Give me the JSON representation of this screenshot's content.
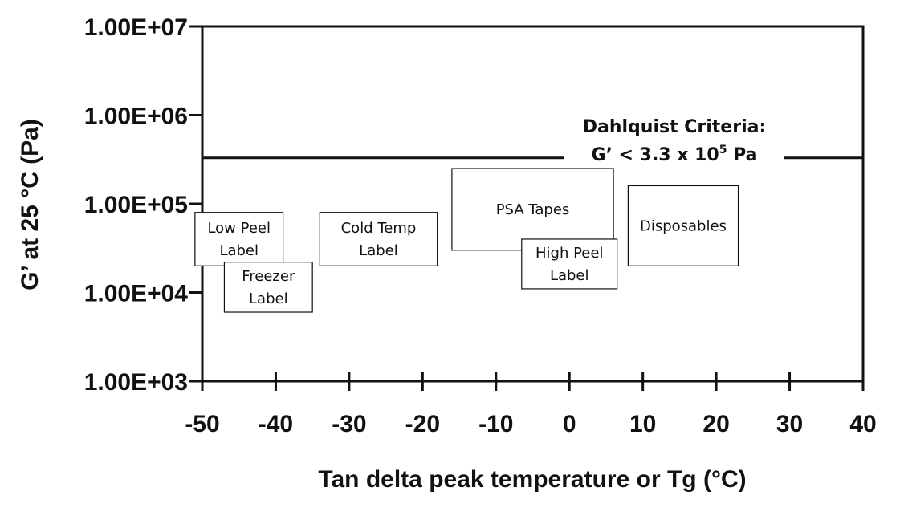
{
  "chart_data": {
    "type": "scatter",
    "title": "",
    "xlabel": "Tan delta  peak temperature or Tg (°C)",
    "ylabel": "G’ at 25 °C (Pa)",
    "xlim": [
      -50,
      40
    ],
    "ylim": [
      1000,
      10000000
    ],
    "y_scale": "log",
    "grid": false,
    "x_ticks": [
      -50,
      -40,
      -30,
      -20,
      -10,
      0,
      10,
      20,
      30,
      40
    ],
    "x_tick_labels": [
      "-50",
      "-40",
      "-30",
      "-20",
      "-10",
      "0",
      "10",
      "20",
      "30",
      "40"
    ],
    "y_ticks": [
      1000,
      10000,
      100000,
      1000000,
      10000000
    ],
    "y_tick_labels": [
      "1.00E+03",
      "1.00E+04",
      "1.00E+05",
      "1.00E+06",
      "1.00E+07"
    ],
    "reference_line": {
      "y": 330000,
      "label_lines": [
        "Dahlquist Criteria:",
        "G’ < 3.3 x 10",
        "5",
        " Pa"
      ]
    },
    "regions": [
      {
        "name": "Low Peel Label",
        "lines": [
          "Low Peel",
          "Label"
        ],
        "x_range": [
          -51,
          -39
        ],
        "y_range": [
          20000,
          80000
        ]
      },
      {
        "name": "Freezer Label",
        "lines": [
          "Freezer",
          "Label"
        ],
        "x_range": [
          -47,
          -35
        ],
        "y_range": [
          6000,
          22000
        ]
      },
      {
        "name": "Cold Temp Label",
        "lines": [
          "Cold Temp",
          "Label"
        ],
        "x_range": [
          -34,
          -18
        ],
        "y_range": [
          20000,
          80000
        ]
      },
      {
        "name": "PSA Tapes",
        "lines": [
          "PSA Tapes"
        ],
        "x_range": [
          -16,
          6
        ],
        "y_range": [
          30000,
          250000
        ]
      },
      {
        "name": "High Peel Label",
        "lines": [
          "High Peel",
          "Label"
        ],
        "x_range": [
          -6.5,
          6.5
        ],
        "y_range": [
          11000,
          40000
        ]
      },
      {
        "name": "Disposables",
        "lines": [
          "Disposables"
        ],
        "x_range": [
          8,
          23
        ],
        "y_range": [
          20000,
          160000
        ]
      }
    ]
  }
}
